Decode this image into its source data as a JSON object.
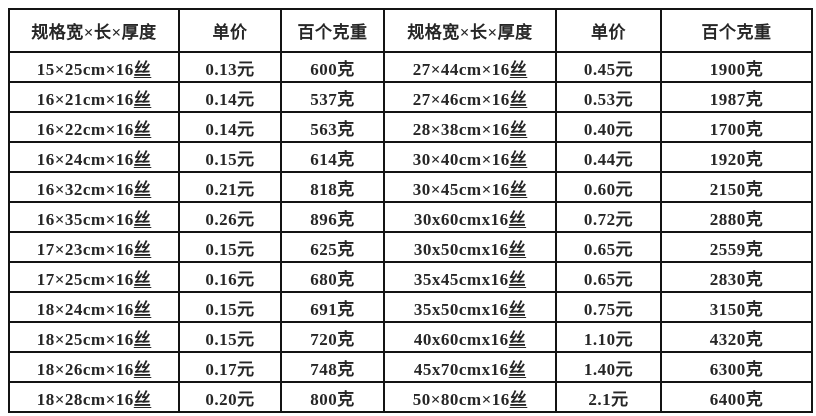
{
  "colors": {
    "background": "#ffffff",
    "border": "#141414",
    "text": "#262626"
  },
  "table": {
    "headers": [
      "规格宽×长×厚度",
      "单价",
      "百个克重",
      "规格宽×长×厚度",
      "单价",
      "百个克重"
    ],
    "underlined_suffix": "丝",
    "rows": [
      [
        "15×25cm×16丝",
        "0.13元",
        "600克",
        "27×44cm×16丝",
        "0.45元",
        "1900克"
      ],
      [
        "16×21cm×16丝",
        "0.14元",
        "537克",
        "27×46cm×16丝",
        "0.53元",
        "1987克"
      ],
      [
        "16×22cm×16丝",
        "0.14元",
        "563克",
        "28×38cm×16丝",
        "0.40元",
        "1700克"
      ],
      [
        "16×24cm×16丝",
        "0.15元",
        "614克",
        "30×40cm×16丝",
        "0.44元",
        "1920克"
      ],
      [
        "16×32cm×16丝",
        "0.21元",
        "818克",
        "30×45cm×16丝",
        "0.60元",
        "2150克"
      ],
      [
        "16×35cm×16丝",
        "0.26元",
        "896克",
        "30x60cmx16丝",
        "0.72元",
        "2880克"
      ],
      [
        "17×23cm×16丝",
        "0.15元",
        "625克",
        "30x50cmx16丝",
        "0.65元",
        "2559克"
      ],
      [
        "17×25cm×16丝",
        "0.16元",
        "680克",
        "35x45cmx16丝",
        "0.65元",
        "2830克"
      ],
      [
        "18×24cm×16丝",
        "0.15元",
        "691克",
        "35x50cmx16丝",
        "0.75元",
        "3150克"
      ],
      [
        "18×25cm×16丝",
        "0.15元",
        "720克",
        "40x60cmx16丝",
        "1.10元",
        "4320克"
      ],
      [
        "18×26cm×16丝",
        "0.17元",
        "748克",
        "45x70cmx16丝",
        "1.40元",
        "6300克"
      ],
      [
        "18×28cm×16丝",
        "0.20元",
        "800克",
        "50×80cm×16丝",
        "2.1元",
        "6400克"
      ]
    ]
  }
}
